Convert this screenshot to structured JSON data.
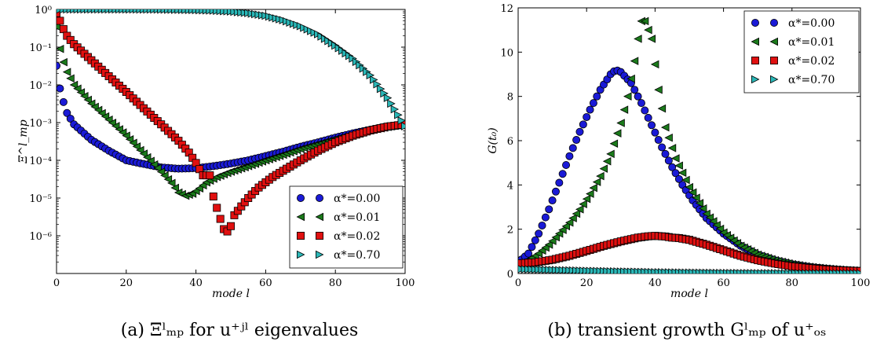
{
  "captions": {
    "a": "(a) Ξˡₘₚ for u⁺ʲˡ eigenvalues",
    "b": "(b) transient growth Gˡₘₚ of u⁺ₒₛ"
  },
  "marker_styles": [
    {
      "shape": "circle",
      "color": "#1a1ad6"
    },
    {
      "shape": "triangle-left",
      "color": "#1b7a1b"
    },
    {
      "shape": "square",
      "color": "#e01010"
    },
    {
      "shape": "triangle-right",
      "color": "#2ab7b7"
    }
  ],
  "chart_data": [
    {
      "type": "scatter",
      "title": "",
      "xlabel": "mode l",
      "ylabel": "Ξ^l_mp",
      "xlim": [
        0,
        100
      ],
      "ylim": [
        1e-07,
        1
      ],
      "yscale": "log",
      "xticks": [
        0,
        20,
        40,
        60,
        80,
        100
      ],
      "yticks": [
        1e-06,
        1e-05,
        0.0001,
        0.001,
        0.01,
        0.1,
        1
      ],
      "ytick_labels": [
        "10⁻⁶",
        "10⁻⁵",
        "10⁻⁴",
        "10⁻³",
        "10⁻²",
        "10⁻¹",
        "10⁰"
      ],
      "legend_position": "lower-right",
      "series": [
        {
          "name": "α*=0.00",
          "points": [
            [
              0,
              0.032
            ],
            [
              1,
              0.008
            ],
            [
              2,
              0.0035
            ],
            [
              3,
              0.0018
            ],
            [
              5,
              0.0009
            ],
            [
              10,
              0.00035
            ],
            [
              15,
              0.00018
            ],
            [
              20,
              0.0001
            ],
            [
              25,
              8e-05
            ],
            [
              30,
              6.5e-05
            ],
            [
              35,
              6e-05
            ],
            [
              40,
              6.2e-05
            ],
            [
              45,
              7e-05
            ],
            [
              50,
              8.2e-05
            ],
            [
              55,
              0.0001
            ],
            [
              60,
              0.00013
            ],
            [
              65,
              0.00017
            ],
            [
              70,
              0.00023
            ],
            [
              75,
              0.0003
            ],
            [
              80,
              0.0004
            ],
            [
              85,
              0.00052
            ],
            [
              90,
              0.00065
            ],
            [
              95,
              0.0008
            ],
            [
              100,
              0.0009
            ]
          ]
        },
        {
          "name": "α*=0.01",
          "points": [
            [
              0,
              0.35
            ],
            [
              1,
              0.09
            ],
            [
              2,
              0.04
            ],
            [
              3,
              0.022
            ],
            [
              5,
              0.01
            ],
            [
              10,
              0.0032
            ],
            [
              15,
              0.0012
            ],
            [
              20,
              0.00045
            ],
            [
              25,
              0.00015
            ],
            [
              30,
              5e-05
            ],
            [
              33,
              2.5e-05
            ],
            [
              35,
              1.4e-05
            ],
            [
              37,
              1.15e-05
            ],
            [
              39,
              1.3e-05
            ],
            [
              41,
              1.8e-05
            ],
            [
              43,
              2.6e-05
            ],
            [
              46,
              3.6e-05
            ],
            [
              50,
              5e-05
            ],
            [
              55,
              7e-05
            ],
            [
              60,
              0.0001
            ],
            [
              65,
              0.00014
            ],
            [
              70,
              0.0002
            ],
            [
              75,
              0.00027
            ],
            [
              80,
              0.00037
            ],
            [
              85,
              0.0005
            ],
            [
              90,
              0.00062
            ],
            [
              95,
              0.00077
            ],
            [
              100,
              0.0009
            ]
          ]
        },
        {
          "name": "α*=0.02",
          "points": [
            [
              0,
              0.8
            ],
            [
              1,
              0.5
            ],
            [
              2,
              0.3
            ],
            [
              3,
              0.2
            ],
            [
              5,
              0.12
            ],
            [
              10,
              0.045
            ],
            [
              15,
              0.017
            ],
            [
              20,
              0.0065
            ],
            [
              25,
              0.0024
            ],
            [
              30,
              0.0009
            ],
            [
              35,
              0.00033
            ],
            [
              38,
              0.00016
            ],
            [
              40,
              8.5e-05
            ],
            [
              42,
              4e-05
            ],
            [
              43,
              4e-05
            ],
            [
              44,
              4e-05
            ],
            [
              45,
              1.1e-05
            ],
            [
              46,
              5.5e-06
            ],
            [
              47,
              2.8e-06
            ],
            [
              48,
              1.5e-06
            ],
            [
              49,
              1.3e-06
            ],
            [
              50,
              1.8e-06
            ],
            [
              51,
              3.5e-06
            ],
            [
              53,
              6e-06
            ],
            [
              55,
              1e-05
            ],
            [
              58,
              1.9e-05
            ],
            [
              62,
              3.6e-05
            ],
            [
              66,
              6e-05
            ],
            [
              70,
              0.0001
            ],
            [
              75,
              0.00018
            ],
            [
              80,
              0.0003
            ],
            [
              85,
              0.00045
            ],
            [
              90,
              0.00062
            ],
            [
              95,
              0.00078
            ],
            [
              100,
              0.0009
            ]
          ]
        },
        {
          "name": "α*=0.70",
          "points": [
            [
              0,
              1
            ],
            [
              10,
              1
            ],
            [
              20,
              1
            ],
            [
              30,
              0.99
            ],
            [
              40,
              0.96
            ],
            [
              45,
              0.93
            ],
            [
              50,
              0.88
            ],
            [
              55,
              0.8
            ],
            [
              60,
              0.68
            ],
            [
              65,
              0.52
            ],
            [
              70,
              0.36
            ],
            [
              75,
              0.22
            ],
            [
              80,
              0.11
            ],
            [
              85,
              0.05
            ],
            [
              90,
              0.018
            ],
            [
              95,
              0.0045
            ],
            [
              100,
              0.0008
            ]
          ]
        }
      ]
    },
    {
      "type": "scatter",
      "title": "",
      "xlabel": "mode l",
      "ylabel": "G(t₀)",
      "xlim": [
        0,
        100
      ],
      "ylim": [
        0,
        12
      ],
      "yscale": "linear",
      "xticks": [
        0,
        20,
        40,
        60,
        80,
        100
      ],
      "yticks": [
        0,
        2,
        4,
        6,
        8,
        10,
        12
      ],
      "legend_position": "upper-right",
      "series": [
        {
          "name": "α*=0.00",
          "points": [
            [
              0,
              0.5
            ],
            [
              3,
              0.9
            ],
            [
              6,
              1.8
            ],
            [
              9,
              2.9
            ],
            [
              12,
              4.1
            ],
            [
              15,
              5.3
            ],
            [
              18,
              6.4
            ],
            [
              21,
              7.4
            ],
            [
              24,
              8.3
            ],
            [
              27,
              9.0
            ],
            [
              28.5,
              9.2
            ],
            [
              30,
              9.1
            ],
            [
              33,
              8.6
            ],
            [
              36,
              7.7
            ],
            [
              39,
              6.7
            ],
            [
              42,
              5.7
            ],
            [
              45,
              4.8
            ],
            [
              48,
              4.0
            ],
            [
              51,
              3.3
            ],
            [
              55,
              2.5
            ],
            [
              60,
              1.8
            ],
            [
              65,
              1.25
            ],
            [
              70,
              0.85
            ],
            [
              75,
              0.6
            ],
            [
              80,
              0.42
            ],
            [
              85,
              0.3
            ],
            [
              90,
              0.22
            ],
            [
              95,
              0.16
            ],
            [
              100,
              0.12
            ]
          ]
        },
        {
          "name": "α*=0.01",
          "points": [
            [
              0,
              0.45
            ],
            [
              3,
              0.6
            ],
            [
              6,
              0.9
            ],
            [
              9,
              1.3
            ],
            [
              12,
              1.8
            ],
            [
              15,
              2.3
            ],
            [
              18,
              2.9
            ],
            [
              21,
              3.6
            ],
            [
              24,
              4.4
            ],
            [
              27,
              5.4
            ],
            [
              30,
              6.8
            ],
            [
              32,
              8.0
            ],
            [
              34,
              9.6
            ],
            [
              35,
              10.6
            ],
            [
              36,
              11.4
            ],
            [
              37,
              11.4
            ],
            [
              39,
              10.6
            ],
            [
              41,
              8.3
            ],
            [
              43,
              6.6
            ],
            [
              46,
              5.2
            ],
            [
              50,
              3.9
            ],
            [
              55,
              2.7
            ],
            [
              60,
              1.85
            ],
            [
              65,
              1.25
            ],
            [
              70,
              0.85
            ],
            [
              75,
              0.6
            ],
            [
              80,
              0.42
            ],
            [
              85,
              0.3
            ],
            [
              90,
              0.22
            ],
            [
              95,
              0.16
            ],
            [
              100,
              0.12
            ]
          ]
        },
        {
          "name": "α*=0.02",
          "points": [
            [
              0,
              0.45
            ],
            [
              5,
              0.5
            ],
            [
              10,
              0.62
            ],
            [
              15,
              0.8
            ],
            [
              20,
              1.02
            ],
            [
              25,
              1.25
            ],
            [
              30,
              1.45
            ],
            [
              35,
              1.62
            ],
            [
              38,
              1.68
            ],
            [
              40,
              1.7
            ],
            [
              43,
              1.67
            ],
            [
              45,
              1.62
            ],
            [
              47,
              1.6
            ],
            [
              50,
              1.52
            ],
            [
              55,
              1.3
            ],
            [
              60,
              1.05
            ],
            [
              65,
              0.8
            ],
            [
              70,
              0.6
            ],
            [
              75,
              0.45
            ],
            [
              80,
              0.33
            ],
            [
              85,
              0.25
            ],
            [
              90,
              0.18
            ],
            [
              95,
              0.14
            ],
            [
              100,
              0.11
            ]
          ]
        },
        {
          "name": "α*=0.70",
          "points": [
            [
              0,
              0.2
            ],
            [
              10,
              0.16
            ],
            [
              20,
              0.12
            ],
            [
              30,
              0.09
            ],
            [
              40,
              0.06
            ],
            [
              50,
              0.04
            ],
            [
              60,
              0.025
            ],
            [
              70,
              0.015
            ],
            [
              80,
              0.01
            ],
            [
              90,
              0.007
            ],
            [
              100,
              0.005
            ]
          ]
        }
      ]
    }
  ]
}
